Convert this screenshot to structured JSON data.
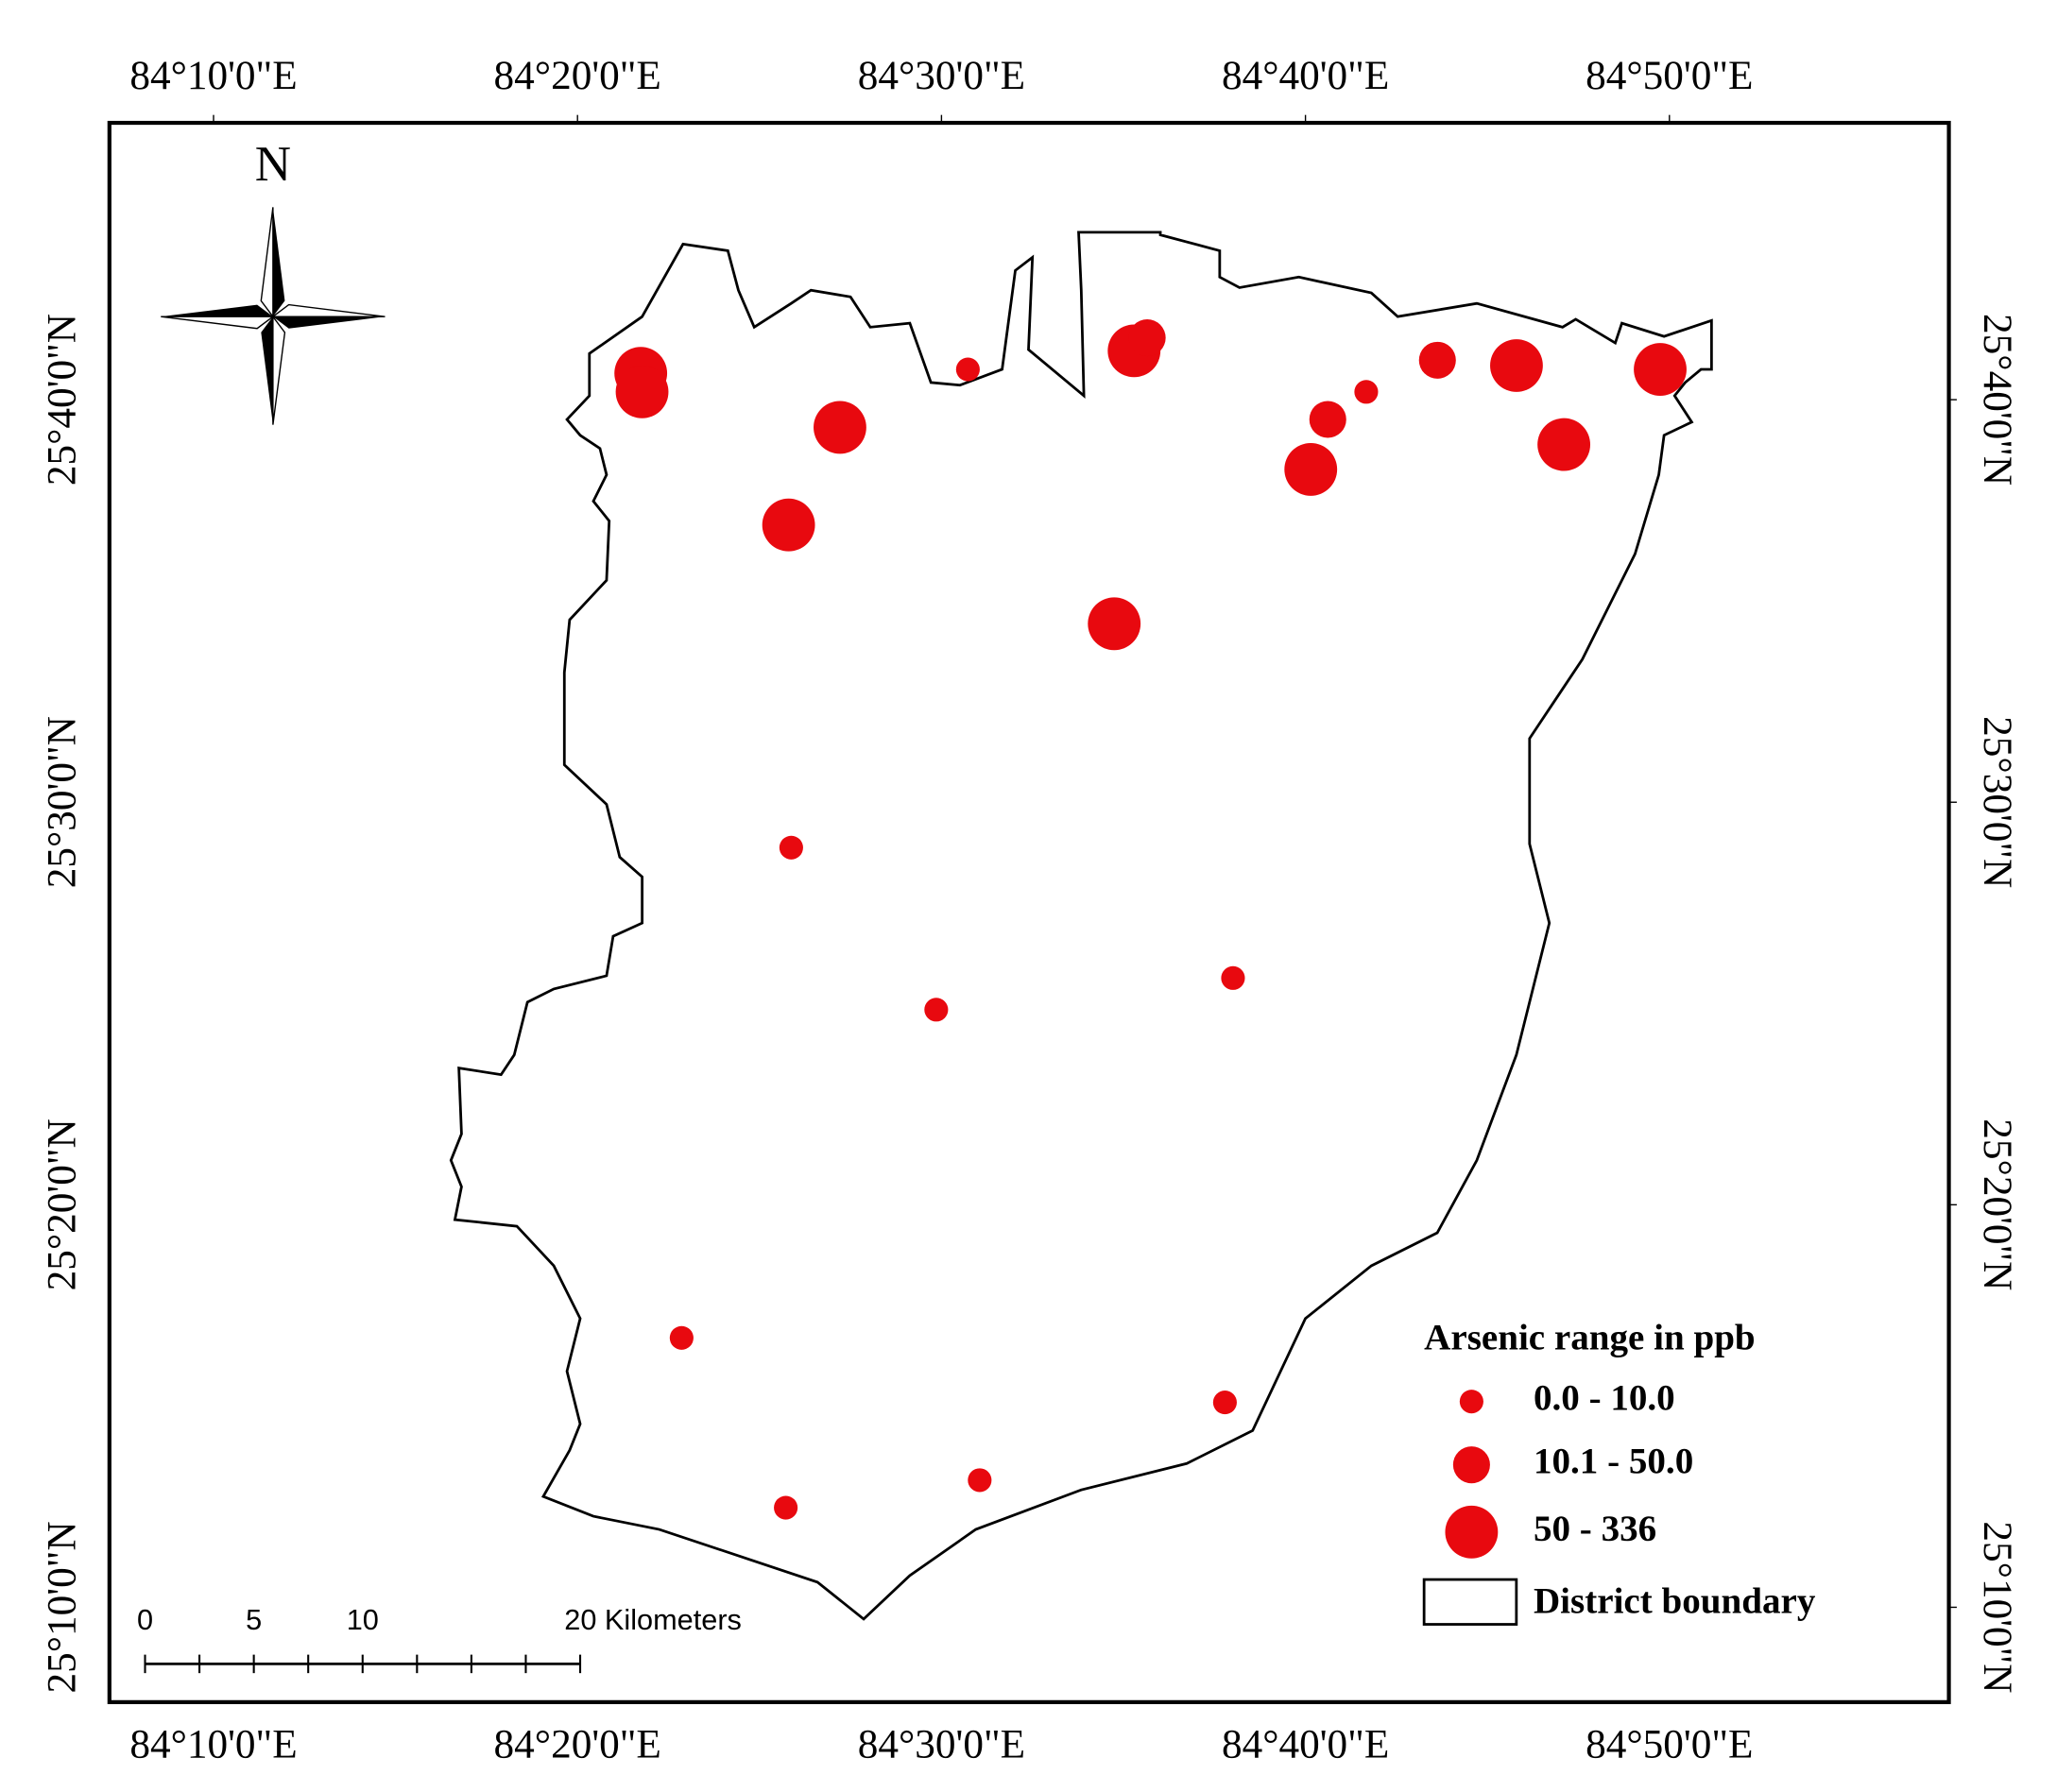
{
  "map": {
    "north": "N",
    "xlim": [
      84.119,
      84.9613
    ],
    "ylim": [
      25.1274,
      25.7813
    ],
    "xticks": [
      {
        "value": 84.16667,
        "label": "84°10'0\"E"
      },
      {
        "value": 84.33333,
        "label": "84°20'0\"E"
      },
      {
        "value": 84.5,
        "label": "84°30'0\"E"
      },
      {
        "value": 84.66667,
        "label": "84°40'0\"E"
      },
      {
        "value": 84.83333,
        "label": "84°50'0\"E"
      }
    ],
    "yticks": [
      {
        "value": 25.16667,
        "label": "25°10'0\"N"
      },
      {
        "value": 25.33333,
        "label": "25°20'0\"N"
      },
      {
        "value": 25.5,
        "label": "25°30'0\"N"
      },
      {
        "value": 25.66667,
        "label": "25°40'0\"N"
      }
    ],
    "color": "#e8090f",
    "sites": [
      {
        "lon": 84.3623,
        "lat": 25.6776,
        "class": 2
      },
      {
        "lon": 84.3629,
        "lat": 25.6699,
        "class": 2
      },
      {
        "lon": 84.4535,
        "lat": 25.6552,
        "class": 2
      },
      {
        "lon": 84.43,
        "lat": 25.6148,
        "class": 2
      },
      {
        "lon": 84.5121,
        "lat": 25.6792,
        "class": 0
      },
      {
        "lon": 84.5882,
        "lat": 25.6869,
        "class": 2
      },
      {
        "lon": 84.5942,
        "lat": 25.6923,
        "class": 1
      },
      {
        "lon": 84.6769,
        "lat": 25.6585,
        "class": 1
      },
      {
        "lon": 84.6945,
        "lat": 25.6699,
        "class": 0
      },
      {
        "lon": 84.6691,
        "lat": 25.6378,
        "class": 2
      },
      {
        "lon": 84.7271,
        "lat": 25.683,
        "class": 1
      },
      {
        "lon": 84.7633,
        "lat": 25.6808,
        "class": 2
      },
      {
        "lon": 84.785,
        "lat": 25.6481,
        "class": 2
      },
      {
        "lon": 84.8291,
        "lat": 25.6792,
        "class": 2
      },
      {
        "lon": 84.5791,
        "lat": 25.5739,
        "class": 2
      },
      {
        "lon": 84.4312,
        "lat": 25.4812,
        "class": 0
      },
      {
        "lon": 84.4976,
        "lat": 25.4141,
        "class": 0
      },
      {
        "lon": 84.6335,
        "lat": 25.4272,
        "class": 0
      },
      {
        "lon": 84.381,
        "lat": 25.2782,
        "class": 0
      },
      {
        "lon": 84.6298,
        "lat": 25.2515,
        "class": 0
      },
      {
        "lon": 84.5175,
        "lat": 25.2193,
        "class": 0
      },
      {
        "lon": 84.4287,
        "lat": 25.2079,
        "class": 0
      }
    ],
    "legend": {
      "title": "Arsenic range in ppb",
      "classes": [
        "0.0 - 10.0",
        "10.1 - 50.0",
        "50 - 336"
      ],
      "boundary": "District boundary"
    },
    "scale_bar": {
      "max": 20,
      "step": 2.5,
      "labels": [
        {
          "value": 0,
          "label": "0"
        },
        {
          "value": 5,
          "label": "5"
        },
        {
          "value": 10,
          "label": "10"
        },
        {
          "value": 20,
          "label": "20 Kilometers"
        }
      ]
    }
  }
}
